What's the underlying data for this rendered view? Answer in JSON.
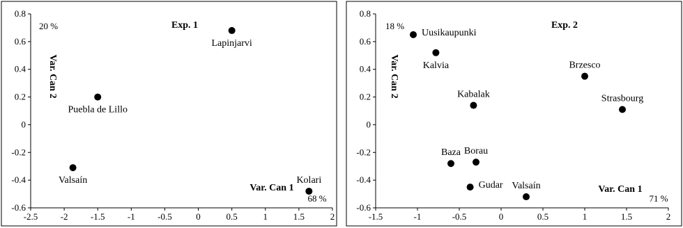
{
  "chart_data": [
    {
      "type": "scatter",
      "title": "Exp. 1",
      "xlabel": "Var. Can 1",
      "ylabel": "Var. Can 2",
      "xlabel_pct": "68 %",
      "ylabel_pct": "20 %",
      "xlim": [
        -2.5,
        2
      ],
      "ylim": [
        -0.6,
        0.8
      ],
      "xticks": [
        "-2.5",
        "-2",
        "-1.5",
        "-1",
        "-0.5",
        "0",
        "0.5",
        "1",
        "1.5",
        "2"
      ],
      "yticks": [
        "-0.6",
        "-0.4",
        "-0.2",
        "0",
        "0.2",
        "0.4",
        "0.6",
        "0.8"
      ],
      "grid": false,
      "points": [
        {
          "name": "Lapinjarvi",
          "x": 0.5,
          "y": 0.68,
          "label_pos": "below"
        },
        {
          "name": "Puebla de Lillo",
          "x": -1.5,
          "y": 0.2,
          "label_pos": "below"
        },
        {
          "name": "Valsaín",
          "x": -1.87,
          "y": -0.31,
          "label_pos": "below"
        },
        {
          "name": "Kolari",
          "x": 1.65,
          "y": -0.48,
          "label_pos": "above"
        }
      ]
    },
    {
      "type": "scatter",
      "title": "Exp. 2",
      "xlabel": "Var. Can 1",
      "ylabel": "Var. Can 2",
      "xlabel_pct": "71 %",
      "ylabel_pct": "18 %",
      "xlim": [
        -1.5,
        2
      ],
      "ylim": [
        -0.6,
        0.8
      ],
      "xticks": [
        "-1.5",
        "-1",
        "-0.5",
        "0",
        "0.5",
        "1",
        "1.5",
        "2"
      ],
      "yticks": [
        "-0.6",
        "-0.4",
        "-0.2",
        "0",
        "0.2",
        "0.4",
        "0.6",
        "0.8"
      ],
      "grid": false,
      "points": [
        {
          "name": "Uusikaupunki",
          "x": -1.05,
          "y": 0.65,
          "label_pos": "right"
        },
        {
          "name": "Kalvia",
          "x": -0.78,
          "y": 0.52,
          "label_pos": "below"
        },
        {
          "name": "Brzesco",
          "x": 1.0,
          "y": 0.35,
          "label_pos": "above"
        },
        {
          "name": "Kabalak",
          "x": -0.33,
          "y": 0.14,
          "label_pos": "above"
        },
        {
          "name": "Strasbourg",
          "x": 1.45,
          "y": 0.11,
          "label_pos": "above"
        },
        {
          "name": "Baza",
          "x": -0.6,
          "y": -0.28,
          "label_pos": "above"
        },
        {
          "name": "Borau",
          "x": -0.3,
          "y": -0.27,
          "label_pos": "above"
        },
        {
          "name": "Gudar",
          "x": -0.37,
          "y": -0.45,
          "label_pos": "right"
        },
        {
          "name": "Valsaín",
          "x": 0.3,
          "y": -0.52,
          "label_pos": "above"
        }
      ]
    }
  ]
}
